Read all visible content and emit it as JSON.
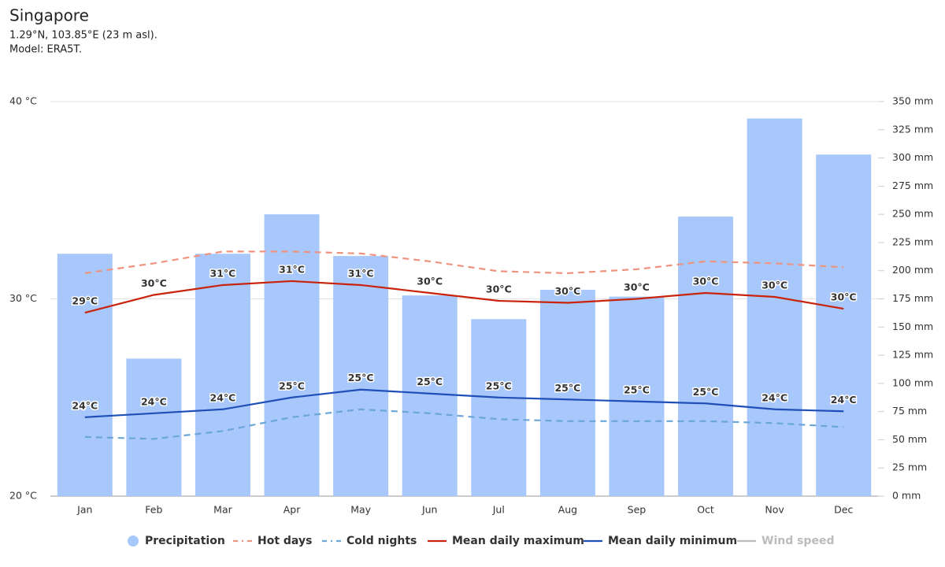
{
  "chart_data": {
    "type": "climate",
    "title": "Singapore",
    "subtitle": [
      "1.29°N, 103.85°E (23 m asl).",
      "Model: ERA5T."
    ],
    "categories": [
      "Jan",
      "Feb",
      "Mar",
      "Apr",
      "May",
      "Jun",
      "Jul",
      "Aug",
      "Sep",
      "Oct",
      "Nov",
      "Dec"
    ],
    "ylim": [
      20,
      40
    ],
    "yticks": [
      {
        "value": 20,
        "label": "20 °C"
      },
      {
        "value": 30,
        "label": "30 °C"
      },
      {
        "value": 40,
        "label": "40 °C"
      }
    ],
    "y2lim": [
      0,
      350
    ],
    "y2ticks": [
      {
        "value": 0,
        "label": "0 mm"
      },
      {
        "value": 25,
        "label": "25 mm"
      },
      {
        "value": 50,
        "label": "50 mm"
      },
      {
        "value": 75,
        "label": "75 mm"
      },
      {
        "value": 100,
        "label": "100 mm"
      },
      {
        "value": 125,
        "label": "125 mm"
      },
      {
        "value": 150,
        "label": "150 mm"
      },
      {
        "value": 175,
        "label": "175 mm"
      },
      {
        "value": 200,
        "label": "200 mm"
      },
      {
        "value": 225,
        "label": "225 mm"
      },
      {
        "value": 250,
        "label": "250 mm"
      },
      {
        "value": 275,
        "label": "275 mm"
      },
      {
        "value": 300,
        "label": "300 mm"
      },
      {
        "value": 325,
        "label": "325 mm"
      },
      {
        "value": 350,
        "label": "350 mm"
      }
    ],
    "grid": true,
    "series": [
      {
        "name": "Precipitation",
        "kind": "bar",
        "axis": "y2",
        "color": "#a8c7fa",
        "values": [
          215,
          122,
          215,
          250,
          213,
          178,
          157,
          183,
          177,
          248,
          335,
          303
        ]
      },
      {
        "name": "Hot days",
        "kind": "dashed",
        "color": "#f0937e",
        "values": [
          31.3,
          31.8,
          32.4,
          32.4,
          32.3,
          31.9,
          31.4,
          31.3,
          31.5,
          31.9,
          31.8,
          31.6
        ]
      },
      {
        "name": "Cold nights",
        "kind": "dashed",
        "color": "#6aa6d8",
        "values": [
          23.0,
          22.9,
          23.3,
          24.0,
          24.4,
          24.2,
          23.9,
          23.8,
          23.8,
          23.8,
          23.7,
          23.5
        ]
      },
      {
        "name": "Mean daily maximum",
        "kind": "line",
        "color": "#c9230c",
        "values": [
          29.3,
          30.2,
          30.7,
          30.9,
          30.7,
          30.3,
          29.9,
          29.8,
          30.0,
          30.3,
          30.1,
          29.5
        ],
        "value_labels": [
          "29°C",
          "30°C",
          "31°C",
          "31°C",
          "31°C",
          "30°C",
          "30°C",
          "30°C",
          "30°C",
          "30°C",
          "30°C",
          "30°C"
        ]
      },
      {
        "name": "Mean daily minimum",
        "kind": "line",
        "color": "#1f4fb8",
        "values": [
          24.0,
          24.2,
          24.4,
          25.0,
          25.4,
          25.2,
          25.0,
          24.9,
          24.8,
          24.7,
          24.4,
          24.3
        ],
        "value_labels": [
          "24°C",
          "24°C",
          "24°C",
          "25°C",
          "25°C",
          "25°C",
          "25°C",
          "25°C",
          "25°C",
          "25°C",
          "24°C",
          "24°C"
        ]
      },
      {
        "name": "Wind speed",
        "kind": "hidden",
        "color": "#bbbbbb"
      }
    ]
  }
}
